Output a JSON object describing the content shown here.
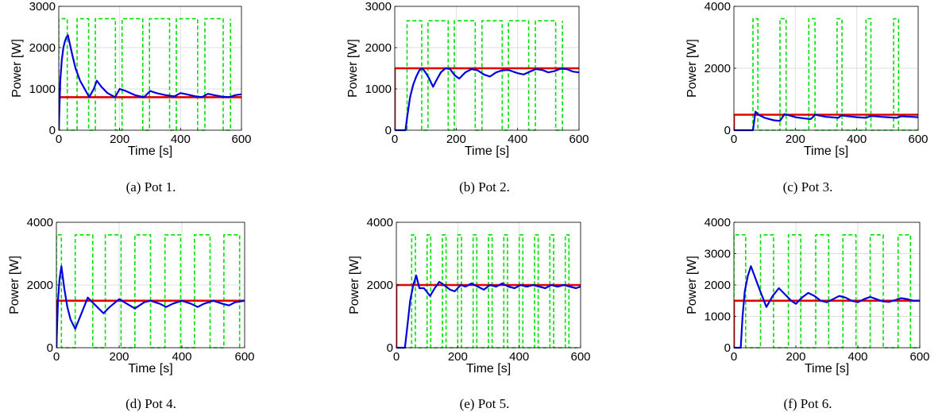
{
  "colors": {
    "power": "#0000dd",
    "setpoint": "#e00000",
    "switch": "#00e000",
    "grid": "#dedede"
  },
  "chart_data": [
    {
      "type": "line",
      "caption": "(a) Pot 1.",
      "xlabel": "Time [s]",
      "ylabel": "Power [W]",
      "xlim": [
        0,
        600
      ],
      "ylim": [
        0,
        3000
      ],
      "xticks": [
        0,
        200,
        400,
        600
      ],
      "yticks": [
        0,
        1000,
        2000,
        3000
      ],
      "grid": true,
      "series": [
        {
          "role": "switch",
          "style": "dashed",
          "x": [
            0,
            0,
            28,
            28,
            60,
            60,
            98,
            98,
            120,
            120,
            186,
            186,
            208,
            208,
            276,
            276,
            298,
            298,
            364,
            364,
            386,
            386,
            456,
            456,
            480,
            480,
            540,
            540,
            564,
            564
          ],
          "y": [
            0,
            2700,
            2700,
            0,
            0,
            2700,
            2700,
            0,
            0,
            2700,
            2700,
            0,
            0,
            2700,
            2700,
            0,
            0,
            2700,
            2700,
            0,
            0,
            2700,
            2700,
            0,
            0,
            2700,
            2700,
            0,
            0,
            2700
          ]
        },
        {
          "role": "setpoint",
          "style": "solid",
          "x": [
            0,
            0,
            600
          ],
          "y": [
            0,
            800,
            800
          ]
        },
        {
          "role": "power",
          "style": "solid",
          "x": [
            0,
            5,
            10,
            15,
            20,
            25,
            30,
            36,
            45,
            55,
            70,
            85,
            100,
            115,
            125,
            140,
            160,
            185,
            200,
            220,
            250,
            280,
            300,
            320,
            350,
            380,
            400,
            420,
            450,
            470,
            490,
            510,
            540,
            560,
            580,
            600
          ],
          "y": [
            0,
            1200,
            1700,
            2000,
            2150,
            2250,
            2300,
            2100,
            1800,
            1500,
            1200,
            1000,
            800,
            1000,
            1200,
            1050,
            900,
            800,
            1000,
            950,
            850,
            800,
            950,
            900,
            850,
            820,
            900,
            870,
            820,
            800,
            880,
            850,
            810,
            800,
            850,
            870
          ]
        }
      ]
    },
    {
      "type": "line",
      "caption": "(b) Pot 2.",
      "xlabel": "Time [s]",
      "ylabel": "Power [W]",
      "xlim": [
        0,
        600
      ],
      "ylim": [
        0,
        3000
      ],
      "xticks": [
        0,
        200,
        400,
        600
      ],
      "yticks": [
        0,
        1000,
        2000,
        3000
      ],
      "grid": true,
      "series": [
        {
          "role": "switch",
          "style": "dashed",
          "x": [
            0,
            40,
            40,
            88,
            88,
            108,
            108,
            174,
            174,
            194,
            194,
            262,
            262,
            284,
            284,
            350,
            350,
            370,
            370,
            436,
            436,
            458,
            458,
            524,
            524,
            546,
            546
          ],
          "y": [
            0,
            0,
            2650,
            2650,
            0,
            0,
            2650,
            2650,
            0,
            0,
            2650,
            2650,
            0,
            0,
            2650,
            2650,
            0,
            0,
            2650,
            2650,
            0,
            0,
            2650,
            2650,
            0,
            0,
            2650
          ]
        },
        {
          "role": "setpoint",
          "style": "solid",
          "x": [
            0,
            0,
            600
          ],
          "y": [
            0,
            1500,
            1500
          ]
        },
        {
          "role": "power",
          "style": "solid",
          "x": [
            0,
            35,
            40,
            50,
            60,
            70,
            80,
            90,
            100,
            110,
            125,
            135,
            150,
            165,
            180,
            195,
            210,
            230,
            250,
            270,
            290,
            310,
            330,
            350,
            370,
            400,
            420,
            440,
            460,
            480,
            500,
            520,
            540,
            560,
            580,
            600
          ],
          "y": [
            0,
            0,
            300,
            800,
            1100,
            1300,
            1450,
            1500,
            1400,
            1280,
            1050,
            1200,
            1400,
            1500,
            1480,
            1330,
            1250,
            1400,
            1480,
            1450,
            1350,
            1300,
            1400,
            1450,
            1460,
            1380,
            1350,
            1420,
            1480,
            1460,
            1400,
            1430,
            1490,
            1480,
            1420,
            1400
          ]
        }
      ]
    },
    {
      "type": "line",
      "caption": "(c) Pot 3.",
      "xlabel": "Time [s]",
      "ylabel": "Power [W]",
      "xlim": [
        0,
        600
      ],
      "ylim": [
        0,
        4000
      ],
      "xticks": [
        0,
        200,
        400,
        600
      ],
      "yticks": [
        0,
        2000,
        4000
      ],
      "grid": true,
      "series": [
        {
          "role": "switch",
          "style": "dashed",
          "x": [
            0,
            62,
            62,
            78,
            78,
            150,
            150,
            170,
            170,
            244,
            244,
            264,
            264,
            336,
            336,
            352,
            352,
            430,
            430,
            446,
            446,
            520,
            520,
            536,
            536,
            600
          ],
          "y": [
            0,
            0,
            3600,
            3600,
            0,
            0,
            3600,
            3600,
            0,
            0,
            3600,
            3600,
            0,
            0,
            3600,
            3600,
            0,
            0,
            3600,
            3600,
            0,
            0,
            3600,
            3600,
            0,
            0
          ]
        },
        {
          "role": "setpoint",
          "style": "solid",
          "x": [
            0,
            0,
            600
          ],
          "y": [
            0,
            500,
            500
          ]
        },
        {
          "role": "power",
          "style": "solid",
          "x": [
            0,
            62,
            70,
            80,
            100,
            130,
            150,
            165,
            180,
            200,
            230,
            250,
            265,
            280,
            300,
            340,
            350,
            365,
            380,
            400,
            430,
            445,
            460,
            480,
            500,
            530,
            545,
            560,
            580,
            600
          ],
          "y": [
            0,
            0,
            600,
            500,
            400,
            320,
            300,
            520,
            480,
            420,
            380,
            360,
            500,
            470,
            430,
            400,
            480,
            460,
            440,
            420,
            400,
            460,
            450,
            430,
            420,
            400,
            450,
            440,
            430,
            420
          ]
        }
      ]
    },
    {
      "type": "line",
      "caption": "(d) Pot 4.",
      "xlabel": "Time [s]",
      "ylabel": "Power [W]",
      "xlim": [
        0,
        600
      ],
      "ylim": [
        0,
        4000
      ],
      "xticks": [
        0,
        200,
        400,
        600
      ],
      "yticks": [
        0,
        2000,
        4000
      ],
      "grid": true,
      "series": [
        {
          "role": "switch",
          "style": "dashed",
          "x": [
            0,
            0,
            16,
            16,
            60,
            60,
            116,
            116,
            156,
            156,
            206,
            206,
            250,
            250,
            300,
            300,
            346,
            346,
            396,
            396,
            440,
            440,
            490,
            490,
            534,
            534,
            584,
            584
          ],
          "y": [
            0,
            3600,
            3600,
            0,
            0,
            3600,
            3600,
            0,
            0,
            3600,
            3600,
            0,
            0,
            3600,
            3600,
            0,
            0,
            3600,
            3600,
            0,
            0,
            3600,
            3600,
            0,
            0,
            3600,
            3600,
            0
          ]
        },
        {
          "role": "setpoint",
          "style": "solid",
          "x": [
            0,
            0,
            600
          ],
          "y": [
            0,
            1500,
            1500
          ]
        },
        {
          "role": "power",
          "style": "solid",
          "x": [
            0,
            5,
            10,
            16,
            25,
            35,
            45,
            60,
            80,
            100,
            110,
            130,
            150,
            170,
            200,
            225,
            250,
            280,
            300,
            330,
            350,
            370,
            400,
            430,
            450,
            470,
            500,
            530,
            550,
            570,
            600
          ],
          "y": [
            0,
            1500,
            2200,
            2600,
            1900,
            1300,
            900,
            600,
            1100,
            1600,
            1500,
            1300,
            1100,
            1300,
            1550,
            1400,
            1250,
            1450,
            1500,
            1400,
            1300,
            1400,
            1500,
            1400,
            1300,
            1400,
            1500,
            1400,
            1350,
            1450,
            1500
          ]
        }
      ]
    },
    {
      "type": "line",
      "caption": "(e) Pot 5.",
      "xlabel": "Time [s]",
      "ylabel": "Power [W]",
      "xlim": [
        0,
        600
      ],
      "ylim": [
        0,
        4000
      ],
      "xticks": [
        0,
        200,
        400,
        600
      ],
      "yticks": [
        0,
        2000,
        4000
      ],
      "grid": true,
      "series": [
        {
          "role": "switch",
          "style": "dashed",
          "x": [
            0,
            50,
            50,
            62,
            62,
            100,
            100,
            112,
            112,
            150,
            150,
            162,
            162,
            200,
            200,
            212,
            212,
            250,
            250,
            262,
            262,
            300,
            300,
            312,
            312,
            350,
            350,
            362,
            362,
            400,
            400,
            412,
            412,
            450,
            450,
            462,
            462,
            500,
            500,
            512,
            512,
            550,
            550,
            562,
            562,
            600
          ],
          "y": [
            0,
            0,
            3600,
            3600,
            0,
            0,
            3600,
            3600,
            0,
            0,
            3600,
            3600,
            0,
            0,
            3600,
            3600,
            0,
            0,
            3600,
            3600,
            0,
            0,
            3600,
            3600,
            0,
            0,
            3600,
            3600,
            0,
            0,
            3600,
            3600,
            0,
            0,
            3600,
            3600,
            0,
            0,
            3600,
            3600,
            0,
            0,
            3600,
            3600,
            0,
            0
          ]
        },
        {
          "role": "setpoint",
          "style": "solid",
          "x": [
            0,
            0,
            600
          ],
          "y": [
            0,
            2000,
            2000
          ]
        },
        {
          "role": "power",
          "style": "solid",
          "x": [
            0,
            28,
            35,
            45,
            55,
            65,
            75,
            90,
            110,
            125,
            140,
            155,
            175,
            190,
            210,
            225,
            245,
            265,
            285,
            305,
            325,
            345,
            365,
            385,
            405,
            425,
            445,
            465,
            485,
            505,
            525,
            545,
            565,
            585,
            600
          ],
          "y": [
            0,
            0,
            600,
            1500,
            2000,
            2300,
            1900,
            1900,
            1650,
            1900,
            2100,
            2000,
            1850,
            1800,
            2000,
            1950,
            2050,
            1950,
            1850,
            2000,
            1950,
            2050,
            1950,
            1900,
            2000,
            1950,
            2000,
            1950,
            1900,
            2000,
            1950,
            2000,
            1950,
            1900,
            1950
          ]
        }
      ]
    },
    {
      "type": "line",
      "caption": "(f) Pot 6.",
      "xlabel": "Time [s]",
      "ylabel": "Power [W]",
      "xlim": [
        0,
        600
      ],
      "ylim": [
        0,
        4000
      ],
      "xticks": [
        0,
        200,
        400,
        600
      ],
      "yticks": [
        0,
        1000,
        2000,
        3000,
        4000
      ],
      "grid": true,
      "series": [
        {
          "role": "switch",
          "style": "dashed",
          "x": [
            0,
            0,
            38,
            38,
            86,
            86,
            128,
            128,
            176,
            176,
            216,
            216,
            264,
            264,
            306,
            306,
            352,
            352,
            394,
            394,
            440,
            440,
            482,
            482,
            530,
            530,
            570,
            570,
            600
          ],
          "y": [
            0,
            3600,
            3600,
            0,
            0,
            3600,
            3600,
            0,
            0,
            3600,
            3600,
            0,
            0,
            3600,
            3600,
            0,
            0,
            3600,
            3600,
            0,
            0,
            3600,
            3600,
            0,
            0,
            3600,
            3600,
            0,
            0
          ]
        },
        {
          "role": "setpoint",
          "style": "solid",
          "x": [
            0,
            0,
            600
          ],
          "y": [
            0,
            1500,
            1500
          ]
        },
        {
          "role": "power",
          "style": "solid",
          "x": [
            0,
            22,
            28,
            35,
            45,
            55,
            70,
            85,
            105,
            125,
            145,
            165,
            185,
            200,
            220,
            240,
            260,
            280,
            300,
            320,
            340,
            360,
            380,
            400,
            420,
            440,
            460,
            480,
            500,
            520,
            540,
            560,
            580,
            600
          ],
          "y": [
            0,
            0,
            1000,
            1800,
            2300,
            2600,
            2200,
            1800,
            1300,
            1650,
            1900,
            1700,
            1500,
            1400,
            1600,
            1750,
            1650,
            1500,
            1450,
            1550,
            1650,
            1600,
            1500,
            1450,
            1550,
            1620,
            1550,
            1480,
            1460,
            1520,
            1580,
            1550,
            1500,
            1500
          ]
        }
      ]
    }
  ]
}
